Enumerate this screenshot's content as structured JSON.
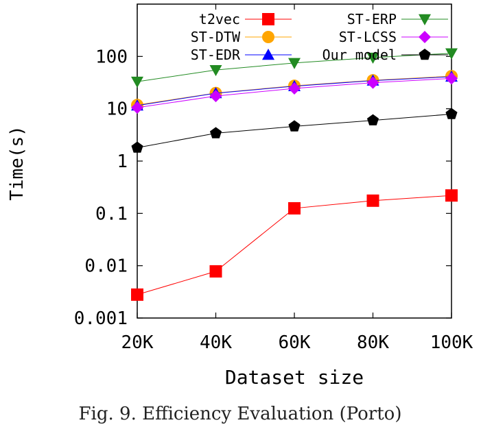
{
  "chart_data": {
    "type": "line",
    "title": "",
    "caption": "Fig. 9.  Efficiency Evaluation (Porto)",
    "xlabel": "Dataset size",
    "ylabel": "Time(s)",
    "y_scale": "log",
    "ylim": [
      0.001,
      1000
    ],
    "categories": [
      "20K",
      "40K",
      "60K",
      "80K",
      "100K"
    ],
    "y_ticks": [
      {
        "value": 0.001,
        "label": "0.001"
      },
      {
        "value": 0.01,
        "label": "0.01"
      },
      {
        "value": 0.1,
        "label": "0.1"
      },
      {
        "value": 1,
        "label": "1"
      },
      {
        "value": 10,
        "label": "10"
      },
      {
        "value": 100,
        "label": "100"
      }
    ],
    "grid": false,
    "legend_position": "top",
    "series": [
      {
        "name": "t2vec",
        "color": "#ff0000",
        "marker": "square",
        "values": [
          0.0028,
          0.0078,
          0.125,
          0.175,
          0.22
        ]
      },
      {
        "name": "ST-DTW",
        "color": "#ffa500",
        "marker": "circle",
        "values": [
          11.8,
          20.0,
          27.5,
          35.0,
          42.0
        ]
      },
      {
        "name": "ST-EDR",
        "color": "#0000ff",
        "marker": "triangle-up",
        "values": [
          11.5,
          19.8,
          27.0,
          34.5,
          41.0
        ]
      },
      {
        "name": "ST-ERP",
        "color": "#228b22",
        "marker": "triangle-down",
        "values": [
          33.0,
          55.0,
          75.0,
          95.0,
          115.0
        ]
      },
      {
        "name": "ST-LCSS",
        "color": "#cc00ff",
        "marker": "diamond",
        "values": [
          10.5,
          17.5,
          24.5,
          31.5,
          38.0
        ]
      },
      {
        "name": "Our model",
        "color": "#000000",
        "marker": "pentagon",
        "values": [
          1.8,
          3.4,
          4.6,
          6.0,
          7.9
        ]
      }
    ]
  }
}
